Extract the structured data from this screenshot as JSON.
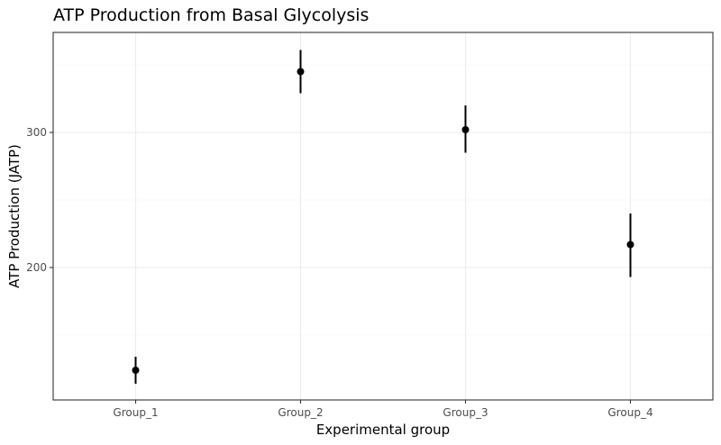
{
  "chart_data": {
    "type": "scatter",
    "title": "ATP Production from Basal Glycolysis",
    "xlabel": "Experimental group",
    "ylabel": "ATP Production (JATP)",
    "categories": [
      "Group_1",
      "Group_2",
      "Group_3",
      "Group_4"
    ],
    "values": [
      124,
      345,
      302,
      217
    ],
    "error_low": [
      114,
      329,
      285,
      193
    ],
    "error_high": [
      134,
      361,
      320,
      240
    ],
    "ylim": [
      102,
      374
    ],
    "y_ticks": [
      200,
      300
    ],
    "y_tick_labels": [
      "200",
      "300"
    ],
    "y_minor_ticks": [
      150,
      250,
      350
    ],
    "grid": true,
    "legend": "none",
    "colors": {
      "point": "#000000",
      "grid": "#ebebeb",
      "border": "#333333"
    }
  }
}
